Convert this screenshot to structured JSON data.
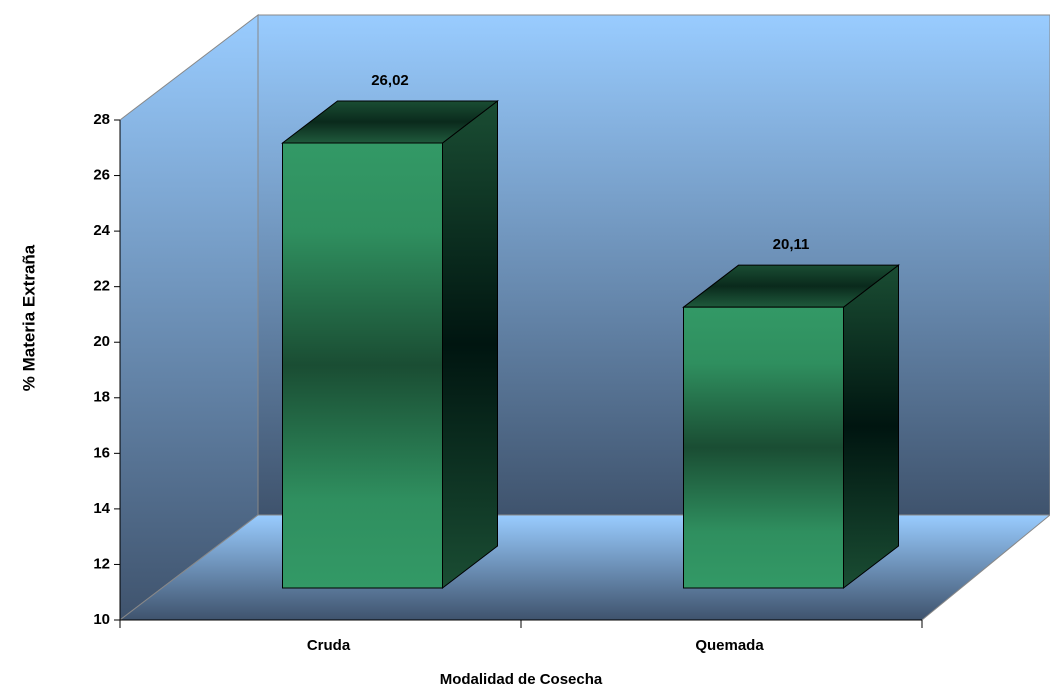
{
  "chart_data": {
    "type": "bar3d",
    "categories": [
      "Cruda",
      "Quemada"
    ],
    "values": [
      26.02,
      20.11
    ],
    "value_labels": [
      "26,02",
      "20,11"
    ],
    "color": "#339966",
    "ylim": [
      10,
      28
    ],
    "yticks": [
      10,
      12,
      14,
      16,
      18,
      20,
      22,
      24,
      26,
      28
    ],
    "ylabel": "% Materia Extraña",
    "xlabel": "Modalidad de Cosecha"
  }
}
